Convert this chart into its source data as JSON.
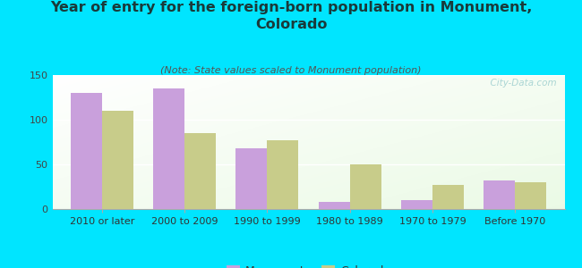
{
  "title": "Year of entry for the foreign-born population in Monument,\nColorado",
  "subtitle": "(Note: State values scaled to Monument population)",
  "categories": [
    "2010 or later",
    "2000 to 2009",
    "1990 to 1999",
    "1980 to 1989",
    "1970 to 1979",
    "Before 1970"
  ],
  "monument_values": [
    130,
    135,
    68,
    8,
    10,
    32
  ],
  "colorado_values": [
    110,
    85,
    77,
    50,
    27,
    30
  ],
  "monument_color": "#c9a0dc",
  "colorado_color": "#c8cc8a",
  "background_color": "#00e5ff",
  "ylim": [
    0,
    150
  ],
  "yticks": [
    0,
    50,
    100,
    150
  ],
  "bar_width": 0.38,
  "title_fontsize": 11.5,
  "subtitle_fontsize": 8,
  "tick_fontsize": 8,
  "legend_fontsize": 9,
  "watermark": "  City-Data.com"
}
